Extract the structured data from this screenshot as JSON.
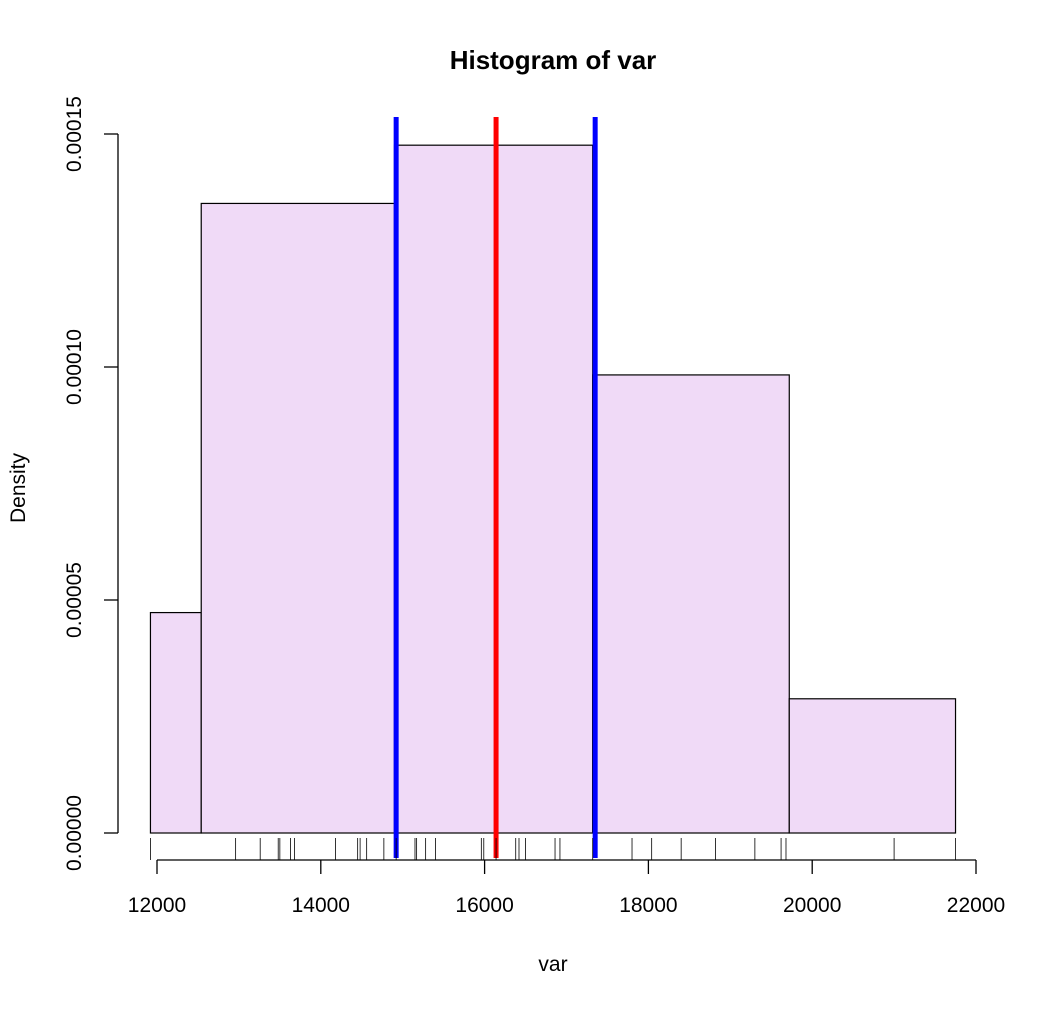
{
  "chart_data": {
    "type": "histogram",
    "title": "Histogram of var",
    "xlabel": "var",
    "ylabel": "Density",
    "xlim": [
      12000,
      22000
    ],
    "ylim": [
      0,
      0.00015
    ],
    "x_ticks": [
      "12000",
      "14000",
      "16000",
      "18000",
      "20000",
      "22000"
    ],
    "y_ticks": [
      "0.00000",
      "0.00005",
      "0.00010",
      "0.00015"
    ],
    "bins": [
      {
        "x0": 11920,
        "x1": 12540,
        "density": 4.73e-05
      },
      {
        "x0": 12540,
        "x1": 14900,
        "density": 0.0001351
      },
      {
        "x0": 14900,
        "x1": 17320,
        "density": 0.0001476
      },
      {
        "x0": 17320,
        "x1": 19720,
        "density": 9.83e-05
      },
      {
        "x0": 19720,
        "x1": 21750,
        "density": 2.88e-05
      }
    ],
    "rug": [
      11920,
      12960,
      13260,
      13480,
      13500,
      13630,
      13680,
      14180,
      14450,
      14480,
      14560,
      14770,
      14920,
      15150,
      15170,
      15280,
      15400,
      15960,
      15990,
      16140,
      16380,
      16420,
      16500,
      16860,
      16920,
      17320,
      17800,
      18040,
      18400,
      18820,
      19300,
      19620,
      19680,
      21000,
      21750
    ],
    "vlines": [
      {
        "x": 14920,
        "color": "#0000ff"
      },
      {
        "x": 16140,
        "color": "#ff0000"
      },
      {
        "x": 17350,
        "color": "#0000ff"
      }
    ],
    "bar_fill": "#f0daf7",
    "bar_stroke": "#000000"
  }
}
